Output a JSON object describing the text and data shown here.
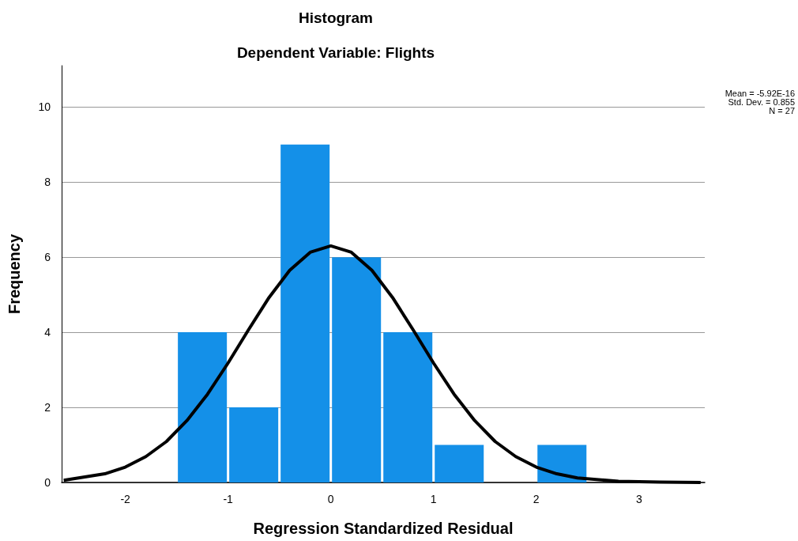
{
  "chart_data": {
    "type": "histogram",
    "title": "Histogram",
    "subtitle": "Dependent Variable: Flights",
    "xlabel": "Regression Standardized Residual",
    "ylabel": "Frequency",
    "annotations": [
      "Mean = -5.92E-16",
      "Std. Dev. = 0.855",
      "N = 27"
    ],
    "xlim": [
      -2.62,
      3.64
    ],
    "xticks": [
      -2,
      -1,
      0,
      1,
      2,
      3
    ],
    "ylim": [
      0,
      11.1
    ],
    "yticks": [
      0,
      2,
      4,
      6,
      8,
      10
    ],
    "grid": "y",
    "series": [
      {
        "color": "#1490e8",
        "bins": [
          -1.5,
          -1,
          -0.5,
          0,
          0.5,
          1,
          1.5,
          2,
          2.5
        ],
        "values": [
          4,
          2,
          9,
          6,
          4,
          1,
          0,
          1
        ]
      },
      {
        "type": "line",
        "color": "#000000",
        "x": [
          -2.6,
          -2.2,
          -2,
          -1.8,
          -1.6,
          -1.4,
          -1.2,
          -1,
          -0.8,
          -0.6,
          -0.4,
          -0.2,
          0,
          0.2,
          0.4,
          0.6,
          0.8,
          1,
          1.2,
          1.4,
          1.6,
          1.8,
          2,
          2.2,
          2.4,
          2.8,
          3.2,
          3.6
        ],
        "values": [
          0.06,
          0.23,
          0.41,
          0.69,
          1.09,
          1.65,
          2.35,
          3.18,
          4.07,
          4.93,
          5.65,
          6.13,
          6.3,
          6.13,
          5.65,
          4.93,
          4.07,
          3.18,
          2.35,
          1.65,
          1.09,
          0.69,
          0.41,
          0.23,
          0.12,
          0.03,
          0.01,
          0
        ]
      }
    ]
  }
}
